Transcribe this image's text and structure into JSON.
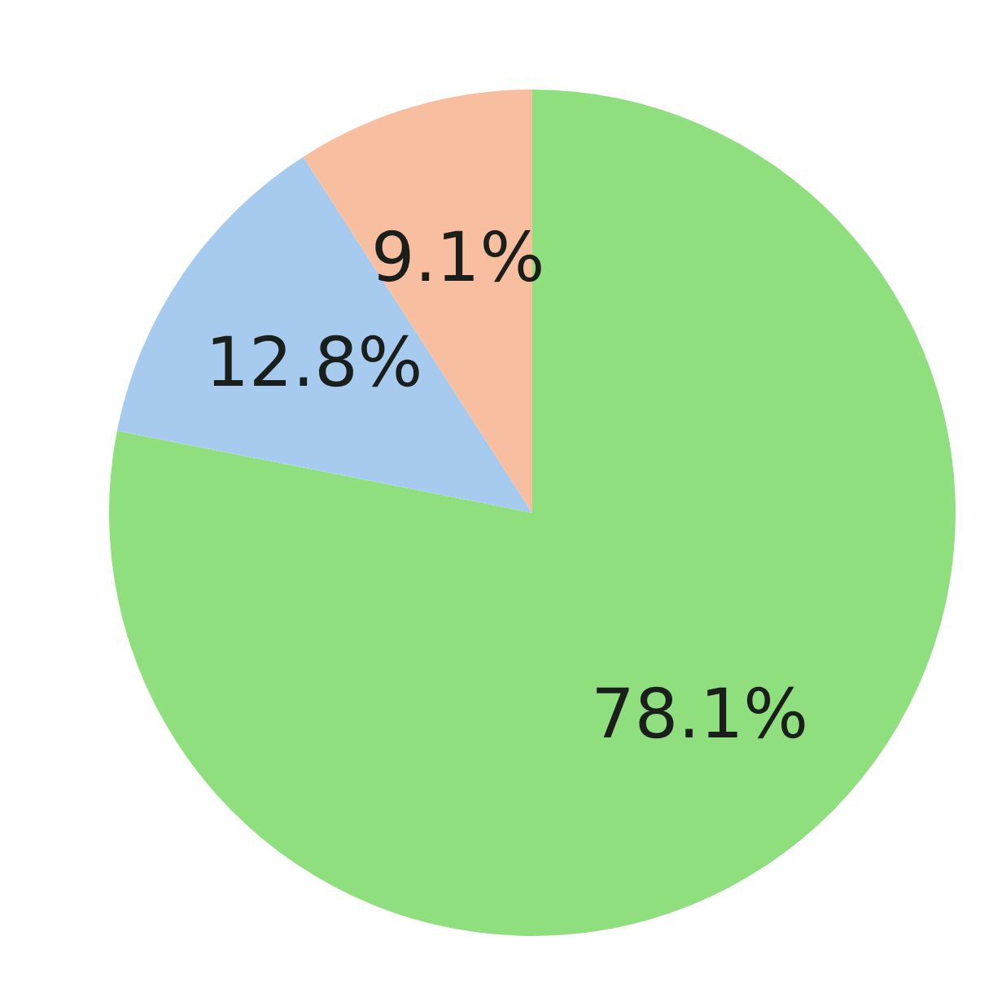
{
  "chart_data": {
    "type": "pie",
    "categories": [
      null,
      null,
      null
    ],
    "values": [
      78.1,
      12.8,
      9.1
    ],
    "colors": [
      "#8fdf7e",
      "#a6cbee",
      "#f7bf9f"
    ],
    "value_labels": [
      "78.1%",
      "12.8%",
      "9.1%"
    ],
    "legend": false
  }
}
